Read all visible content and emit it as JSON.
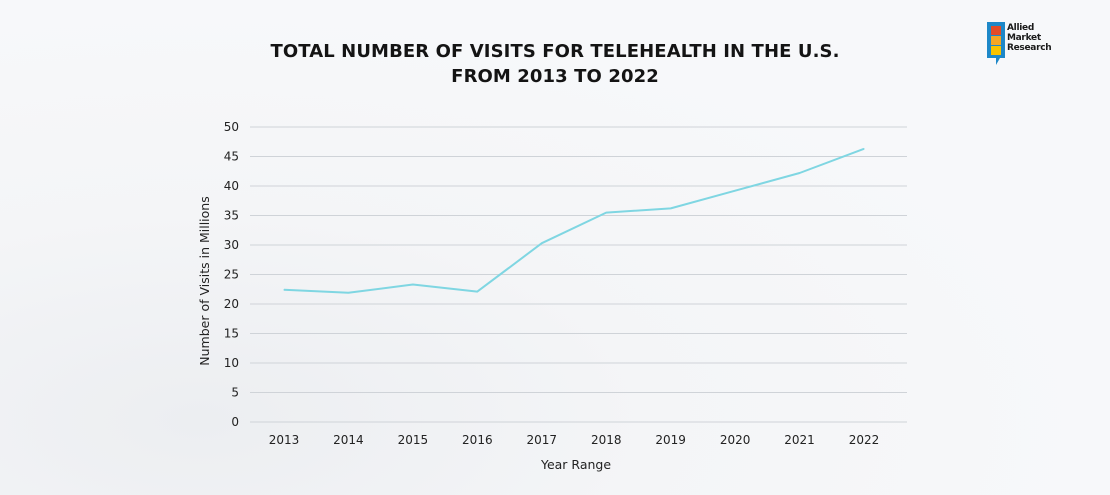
{
  "title_line1": "TOTAL NUMBER OF VISITS FOR TELEHEALTH IN THE U.S.",
  "title_line2": "FROM 2013 TO 2022",
  "logo": {
    "line1": "Allied",
    "line2": "Market",
    "line3": "Research",
    "colors": [
      "#e34b26",
      "#f5a623",
      "#f8c300",
      "#1e88c8"
    ]
  },
  "line_color": "#7fd6e2",
  "grid_color": "#cfd3d8",
  "chart_data": {
    "type": "line",
    "title": "TOTAL NUMBER OF VISITS FOR TELEHEALTH IN THE U.S. FROM 2013 TO 2022",
    "xlabel": "Year Range",
    "ylabel": "Number of Visits in Millions",
    "categories": [
      "2013",
      "2014",
      "2015",
      "2016",
      "2017",
      "2018",
      "2019",
      "2020",
      "2021",
      "2022"
    ],
    "values": [
      22.4,
      21.9,
      23.3,
      22.1,
      30.3,
      35.5,
      36.2,
      39.2,
      42.2,
      46.3
    ],
    "ylim": [
      0,
      50
    ],
    "yticks": [
      "0",
      "5",
      "10",
      "15",
      "20",
      "25",
      "30",
      "35",
      "40",
      "45",
      "50"
    ],
    "grid": true,
    "legend": "none"
  }
}
